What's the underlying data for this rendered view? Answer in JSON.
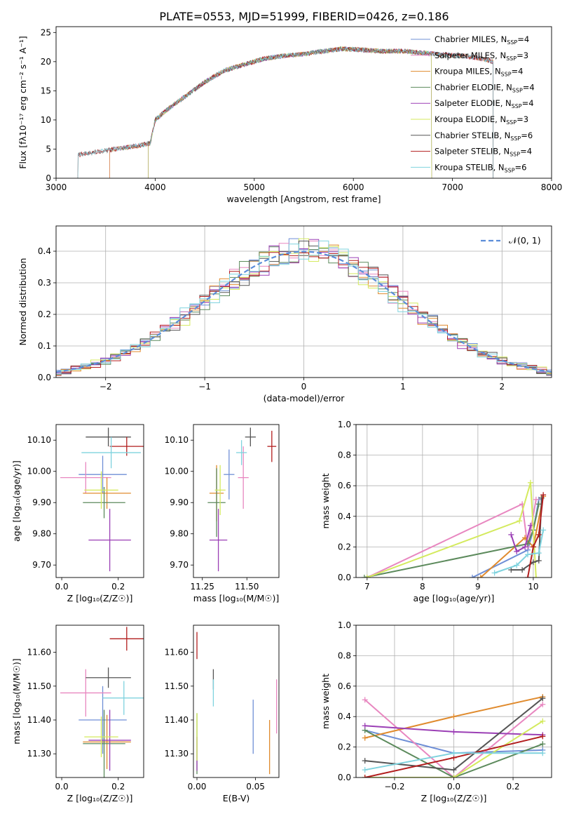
{
  "title": "PLATE=0553, MJD=51999, FIBERID=0426, z=0.186",
  "colors": {
    "Chabrier MILES": "#6f8fd6",
    "Salpeter MILES": "#e887c0",
    "Kroupa MILES": "#e08b2e",
    "Chabrier ELODIE": "#5c8a5c",
    "Salpeter ELODIE": "#9b3fb5",
    "Kroupa ELODIE": "#d4ea5e",
    "Chabrier STELIB": "#555555",
    "Salpeter STELIB": "#b21e1e",
    "Kroupa STELIB": "#7fd3de",
    "normal": "#5b8dd9"
  },
  "chart_data": [
    {
      "id": "spectrum",
      "type": "line",
      "xlabel": "wavelength [Angstrom, rest frame]",
      "ylabel": "Flux [fλ10⁻¹⁷ erg cm⁻² s⁻¹ A⁻¹]",
      "xlim": [
        3000,
        8000
      ],
      "ylim": [
        0,
        26
      ],
      "xticks": [
        3000,
        4000,
        5000,
        6000,
        7000,
        8000
      ],
      "yticks": [
        0,
        5,
        10,
        15,
        20,
        25
      ],
      "legend_position": "right",
      "series": [
        {
          "name": "Chabrier MILES, N_SSP=4",
          "range": [
            3540,
            7410
          ]
        },
        {
          "name": "Salpeter MILES, N_SSP=3",
          "range": [
            3540,
            7410
          ]
        },
        {
          "name": "Kroupa MILES, N_SSP=4",
          "range": [
            3540,
            7410
          ]
        },
        {
          "name": "Chabrier ELODIE, N_SSP=4",
          "range": [
            3930,
            6790
          ]
        },
        {
          "name": "Salpeter ELODIE, N_SSP=4",
          "range": [
            3930,
            6790
          ]
        },
        {
          "name": "Kroupa ELODIE, N_SSP=3",
          "range": [
            3930,
            6790
          ]
        },
        {
          "name": "Chabrier STELIB, N_SSP=6",
          "range": [
            3220,
            7410
          ]
        },
        {
          "name": "Salpeter STELIB, N_SSP=4",
          "range": [
            3220,
            7410
          ]
        },
        {
          "name": "Kroupa STELIB, N_SSP=6",
          "range": [
            3220,
            7410
          ]
        }
      ],
      "continuum": {
        "x": [
          3220,
          3400,
          3600,
          3800,
          3950,
          4000,
          4100,
          4300,
          4500,
          4700,
          4900,
          5100,
          5300,
          5500,
          5700,
          5900,
          6100,
          6300,
          6500,
          6700,
          6900,
          7100,
          7300,
          7410
        ],
        "y": [
          4.0,
          4.5,
          5.0,
          5.5,
          6.0,
          10.0,
          11.5,
          14.0,
          16.5,
          18.5,
          19.5,
          20.5,
          21.0,
          21.3,
          21.8,
          22.2,
          22.0,
          21.8,
          21.8,
          21.5,
          21.2,
          21.0,
          20.5,
          20.0
        ]
      }
    },
    {
      "id": "residuals",
      "type": "histogram",
      "xlabel": "(data-model)/error",
      "ylabel": "Normed distribution",
      "xlim": [
        -2.5,
        2.5
      ],
      "ylim": [
        0,
        0.48
      ],
      "xticks": [
        -2,
        -1,
        0,
        1,
        2
      ],
      "yticks": [
        0.0,
        0.1,
        0.2,
        0.3,
        0.4
      ],
      "bin_width": 0.1,
      "grid": true,
      "legend": "𝒩(0, 1)",
      "legend_position": "top-right"
    },
    {
      "id": "age-vs-Z",
      "type": "errorbar",
      "xlabel": "Z [log₁₀(Z/Z☉)]",
      "ylabel": "age  [log₁₀(age/yr)]",
      "xlim": [
        -0.02,
        0.29
      ],
      "ylim": [
        9.66,
        10.15
      ],
      "xticks": [
        0.0,
        0.2
      ],
      "yticks": [
        9.7,
        9.8,
        9.9,
        10.0,
        10.1
      ],
      "points": [
        {
          "series": "Chabrier MILES",
          "x": 0.145,
          "xerr": 0.085,
          "y": 9.99,
          "yerr": 0.06
        },
        {
          "series": "Salpeter MILES",
          "x": 0.085,
          "xerr": 0.09,
          "y": 9.98,
          "yerr": 0.05
        },
        {
          "series": "Kroupa MILES",
          "x": 0.16,
          "xerr": 0.085,
          "y": 9.93,
          "yerr": 0.05
        },
        {
          "series": "Chabrier ELODIE",
          "x": 0.15,
          "xerr": 0.075,
          "y": 9.9,
          "yerr": 0.05
        },
        {
          "series": "Salpeter ELODIE",
          "x": 0.17,
          "xerr": 0.075,
          "y": 9.78,
          "yerr": 0.1
        },
        {
          "series": "Kroupa ELODIE",
          "x": 0.14,
          "xerr": 0.06,
          "y": 9.94,
          "yerr": 0.06
        },
        {
          "series": "Chabrier STELIB",
          "x": 0.165,
          "xerr": 0.08,
          "y": 10.11,
          "yerr": 0.03
        },
        {
          "series": "Salpeter STELIB",
          "x": 0.23,
          "xerr": 0.06,
          "y": 10.08,
          "yerr": 0.03
        },
        {
          "series": "Kroupa STELIB",
          "x": 0.175,
          "xerr": 0.105,
          "y": 10.06,
          "yerr": 0.05
        }
      ]
    },
    {
      "id": "age-vs-mass",
      "type": "errorbar",
      "xlabel": "mass [log₁₀(M/M☉)]",
      "ylabel": "",
      "xlim": [
        11.2,
        11.68
      ],
      "ylim": [
        9.66,
        10.15
      ],
      "xticks": [
        11.25,
        11.5
      ],
      "yticks": [
        9.7,
        9.8,
        9.9,
        10.0,
        10.1
      ],
      "points": [
        {
          "series": "Chabrier MILES",
          "x": 11.4,
          "xerr": 0.03,
          "y": 9.99,
          "yerr": 0.08
        },
        {
          "series": "Salpeter MILES",
          "x": 11.48,
          "xerr": 0.03,
          "y": 9.98,
          "yerr": 0.1
        },
        {
          "series": "Kroupa MILES",
          "x": 11.33,
          "xerr": 0.04,
          "y": 9.93,
          "yerr": 0.09
        },
        {
          "series": "Chabrier ELODIE",
          "x": 11.33,
          "xerr": 0.05,
          "y": 9.9,
          "yerr": 0.11
        },
        {
          "series": "Salpeter ELODIE",
          "x": 11.34,
          "xerr": 0.05,
          "y": 9.78,
          "yerr": 0.1
        },
        {
          "series": "Kroupa ELODIE",
          "x": 11.35,
          "xerr": 0.03,
          "y": 9.94,
          "yerr": 0.08
        },
        {
          "series": "Chabrier STELIB",
          "x": 11.52,
          "xerr": 0.03,
          "y": 10.11,
          "yerr": 0.03
        },
        {
          "series": "Salpeter STELIB",
          "x": 11.64,
          "xerr": 0.025,
          "y": 10.08,
          "yerr": 0.05
        },
        {
          "series": "Kroupa STELIB",
          "x": 11.47,
          "xerr": 0.03,
          "y": 10.06,
          "yerr": 0.04
        }
      ]
    },
    {
      "id": "massweight-vs-age",
      "type": "line",
      "xlabel": "age  [log₁₀(age/yr)]",
      "ylabel": "mass weight",
      "xlim": [
        6.8,
        10.33
      ],
      "ylim": [
        0,
        1
      ],
      "xticks": [
        7,
        8,
        9,
        10
      ],
      "yticks": [
        0.0,
        0.2,
        0.4,
        0.6,
        0.8,
        1.0
      ],
      "grid": true,
      "series": [
        {
          "name": "Chabrier MILES",
          "x": [
            8.9,
            9.9,
            10.0,
            10.1
          ],
          "y": [
            0.0,
            0.18,
            0.31,
            0.51
          ]
        },
        {
          "name": "Salpeter MILES",
          "x": [
            7.0,
            9.8,
            9.9,
            10.05
          ],
          "y": [
            0.0,
            0.48,
            0.2,
            0.51
          ]
        },
        {
          "name": "Kroupa MILES",
          "x": [
            9.05,
            9.85,
            10.0,
            10.18
          ],
          "y": [
            0.0,
            0.26,
            0.2,
            0.53
          ]
        },
        {
          "name": "Chabrier ELODIE",
          "x": [
            6.95,
            9.9,
            10.0,
            10.1
          ],
          "y": [
            0.0,
            0.22,
            0.31,
            0.48
          ]
        },
        {
          "name": "Salpeter ELODIE",
          "x": [
            9.6,
            9.7,
            9.85,
            9.95
          ],
          "y": [
            0.28,
            0.17,
            0.2,
            0.34
          ]
        },
        {
          "name": "Kroupa ELODIE",
          "x": [
            7.0,
            9.75,
            9.95,
            10.05
          ],
          "y": [
            0.0,
            0.37,
            0.62,
            0.0
          ]
        },
        {
          "name": "Chabrier STELIB",
          "x": [
            9.6,
            9.8,
            10.0,
            10.1,
            10.15
          ],
          "y": [
            0.05,
            0.05,
            0.1,
            0.11,
            0.52
          ]
        },
        {
          "name": "Salpeter STELIB",
          "x": [
            9.9,
            10.0,
            10.1,
            10.18
          ],
          "y": [
            0.0,
            0.2,
            0.28,
            0.54
          ]
        },
        {
          "name": "Kroupa STELIB",
          "x": [
            9.3,
            9.7,
            9.9,
            10.1,
            10.18
          ],
          "y": [
            0.03,
            0.08,
            0.15,
            0.16,
            0.31
          ]
        }
      ]
    },
    {
      "id": "mass-vs-Z",
      "type": "errorbar",
      "xlabel": "Z [log₁₀(Z/Z☉)]",
      "ylabel": "mass [log₁₀(M/M☉)]",
      "xlim": [
        -0.02,
        0.29
      ],
      "ylim": [
        11.23,
        11.68
      ],
      "xticks": [
        0.0,
        0.2
      ],
      "yticks": [
        11.3,
        11.4,
        11.5,
        11.6
      ],
      "points": [
        {
          "series": "Chabrier MILES",
          "x": 0.145,
          "xerr": 0.085,
          "y": 11.4,
          "yerr": 0.1
        },
        {
          "series": "Salpeter MILES",
          "x": 0.085,
          "xerr": 0.09,
          "y": 11.48,
          "yerr": 0.07
        },
        {
          "series": "Kroupa MILES",
          "x": 0.16,
          "xerr": 0.085,
          "y": 11.335,
          "yerr": 0.08
        },
        {
          "series": "Chabrier ELODIE",
          "x": 0.15,
          "xerr": 0.075,
          "y": 11.33,
          "yerr": 0.1
        },
        {
          "series": "Salpeter ELODIE",
          "x": 0.17,
          "xerr": 0.075,
          "y": 11.34,
          "yerr": 0.09
        },
        {
          "series": "Kroupa ELODIE",
          "x": 0.14,
          "xerr": 0.06,
          "y": 11.35,
          "yerr": 0.06
        },
        {
          "series": "Chabrier STELIB",
          "x": 0.165,
          "xerr": 0.08,
          "y": 11.525,
          "yerr": 0.03
        },
        {
          "series": "Salpeter STELIB",
          "x": 0.23,
          "xerr": 0.06,
          "y": 11.64,
          "yerr": 0.035
        },
        {
          "series": "Kroupa STELIB",
          "x": 0.22,
          "xerr": 0.075,
          "y": 11.465,
          "yerr": 0.05
        }
      ]
    },
    {
      "id": "mass-vs-EBV",
      "type": "errorbar",
      "xlabel": "E(B-V)",
      "ylabel": "",
      "xlim": [
        -0.003,
        0.07
      ],
      "ylim": [
        11.23,
        11.68
      ],
      "xticks": [
        0.0,
        0.05
      ],
      "yticks": [
        11.3,
        11.4,
        11.5,
        11.6
      ],
      "points": [
        {
          "series": "Chabrier MILES",
          "x": 0.048,
          "y": 11.38,
          "yerr": 0.08
        },
        {
          "series": "Salpeter MILES",
          "x": 0.068,
          "y": 11.44,
          "yerr": 0.08
        },
        {
          "series": "Kroupa MILES",
          "x": 0.062,
          "y": 11.32,
          "yerr": 0.08
        },
        {
          "series": "Chabrier ELODIE",
          "x": 0.0,
          "y": 11.33,
          "yerr": 0.09
        },
        {
          "series": "Salpeter ELODIE",
          "x": 0.0,
          "y": 11.3,
          "yerr": 0.05
        },
        {
          "series": "Kroupa ELODIE",
          "x": 0.0,
          "y": 11.35,
          "yerr": 0.07
        },
        {
          "series": "Chabrier STELIB",
          "x": 0.014,
          "y": 11.52,
          "yerr": 0.03
        },
        {
          "series": "Salpeter STELIB",
          "x": 0.0,
          "y": 11.62,
          "yerr": 0.04
        },
        {
          "series": "Kroupa STELIB",
          "x": 0.014,
          "y": 11.48,
          "yerr": 0.04
        }
      ]
    },
    {
      "id": "massweight-vs-Z",
      "type": "line",
      "xlabel": "Z [log₁₀(Z/Z☉)]",
      "ylabel": "mass weight",
      "xlim": [
        -0.33,
        0.33
      ],
      "ylim": [
        0,
        1
      ],
      "xticks": [
        -0.2,
        0.0,
        0.2
      ],
      "yticks": [
        0.0,
        0.2,
        0.4,
        0.6,
        0.8,
        1.0
      ],
      "grid": true,
      "series": [
        {
          "name": "Chabrier MILES",
          "x": [
            -0.3,
            0.0,
            0.3
          ],
          "y": [
            0.31,
            0.16,
            0.18
          ]
        },
        {
          "name": "Salpeter MILES",
          "x": [
            -0.3,
            0.0,
            0.3
          ],
          "y": [
            0.51,
            0.0,
            0.48
          ]
        },
        {
          "name": "Kroupa MILES",
          "x": [
            -0.3,
            0.0,
            0.3
          ],
          "y": [
            0.26,
            0.4,
            0.53
          ]
        },
        {
          "name": "Chabrier ELODIE",
          "x": [
            -0.3,
            0.0,
            0.3
          ],
          "y": [
            0.31,
            0.0,
            0.22
          ]
        },
        {
          "name": "Salpeter ELODIE",
          "x": [
            -0.3,
            0.0,
            0.3
          ],
          "y": [
            0.34,
            0.3,
            0.28
          ]
        },
        {
          "name": "Kroupa ELODIE",
          "x": [
            -0.3,
            0.0,
            0.3
          ],
          "y": [
            0.0,
            0.0,
            0.37
          ]
        },
        {
          "name": "Chabrier STELIB",
          "x": [
            -0.3,
            0.0,
            0.3
          ],
          "y": [
            0.11,
            0.05,
            0.52
          ]
        },
        {
          "name": "Salpeter STELIB",
          "x": [
            -0.3,
            0.0,
            0.3
          ],
          "y": [
            0.0,
            0.13,
            0.27
          ]
        },
        {
          "name": "Kroupa STELIB",
          "x": [
            -0.3,
            0.0,
            0.3
          ],
          "y": [
            0.05,
            0.16,
            0.16
          ]
        }
      ]
    }
  ]
}
